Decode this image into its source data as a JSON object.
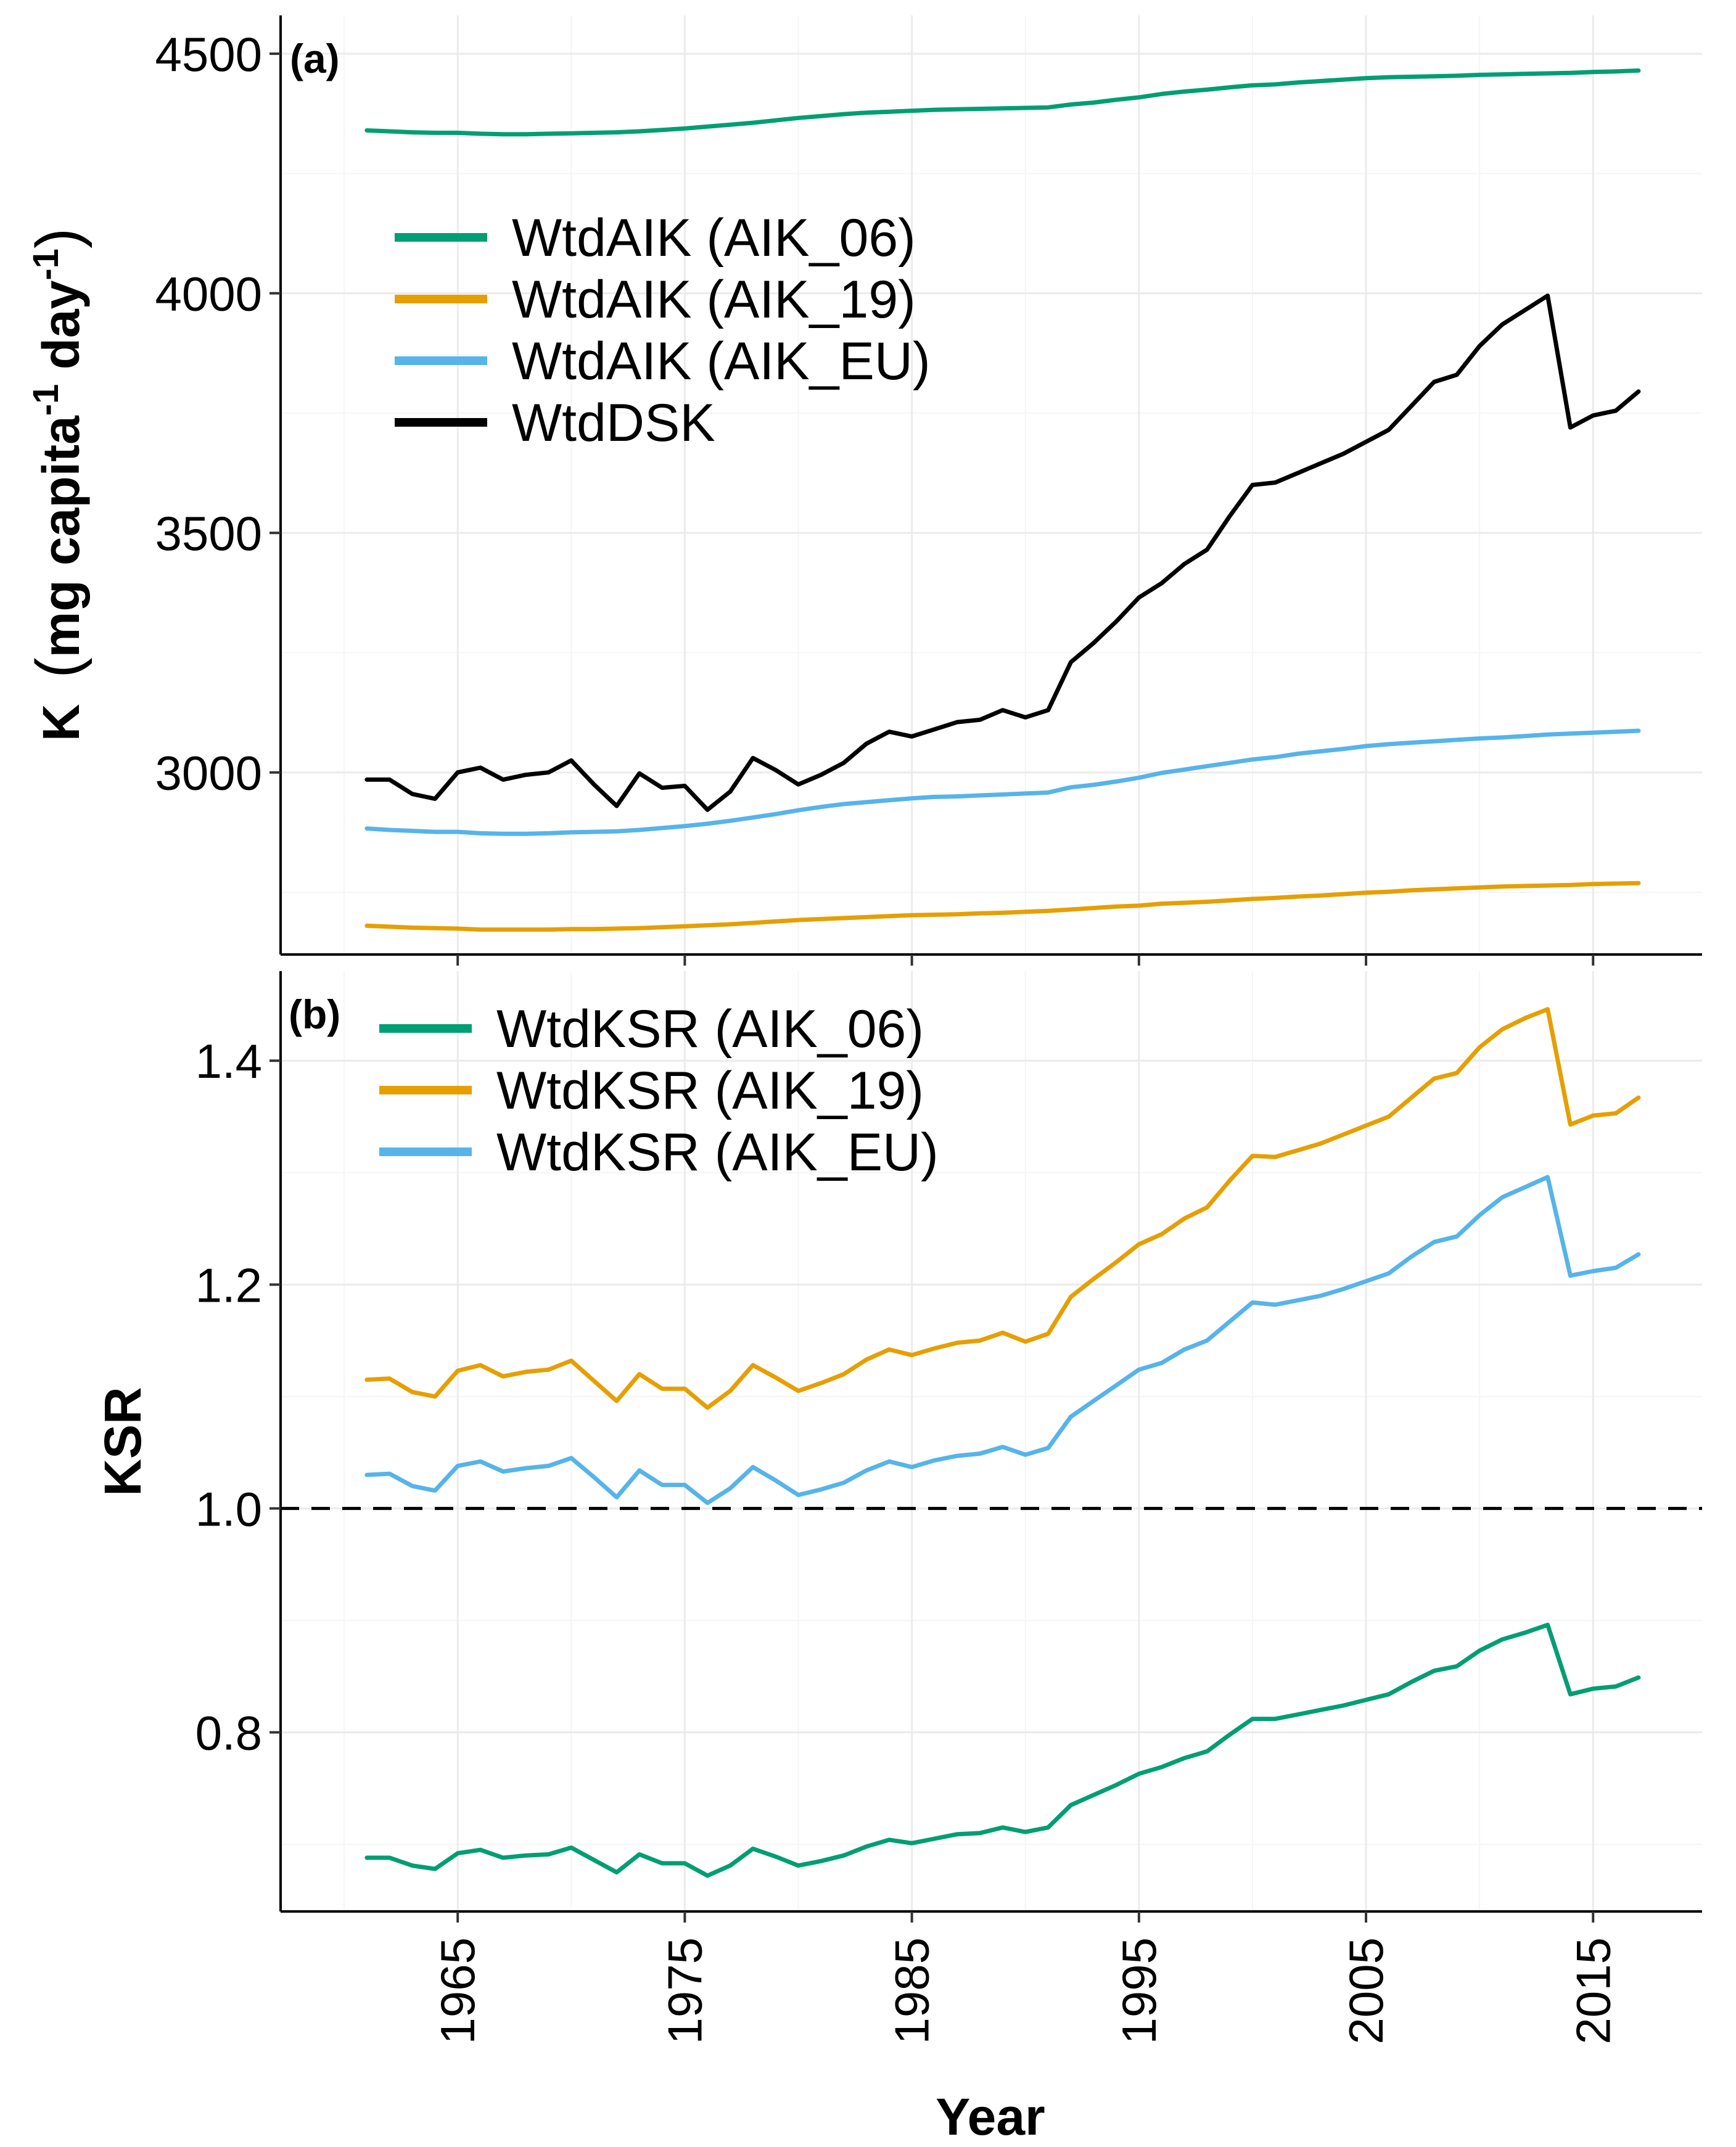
{
  "chart_data": [
    {
      "type": "line",
      "panel_tag": "(a)",
      "ylabel_parts": [
        "K",
        "mg capita",
        "-1",
        " day",
        "-1"
      ],
      "xlabel": "",
      "ylim": [
        2620,
        4580
      ],
      "y_ticks": [
        3000,
        3500,
        4000,
        4500
      ],
      "y_tick_labels": [
        "3000",
        "3500",
        "4000",
        "4500"
      ],
      "legend_position": "upper-left",
      "x": [
        1961,
        1962,
        1963,
        1964,
        1965,
        1966,
        1967,
        1968,
        1969,
        1970,
        1971,
        1972,
        1973,
        1974,
        1975,
        1976,
        1977,
        1978,
        1979,
        1980,
        1981,
        1982,
        1983,
        1984,
        1985,
        1986,
        1987,
        1988,
        1989,
        1990,
        1991,
        1992,
        1993,
        1994,
        1995,
        1996,
        1997,
        1998,
        1999,
        2000,
        2001,
        2002,
        2003,
        2004,
        2005,
        2006,
        2007,
        2008,
        2009,
        2010,
        2011,
        2012,
        2013,
        2014,
        2015,
        2016,
        2017
      ],
      "series": [
        {
          "name": "WtdAIK (AIK_06)",
          "color": "#009E73",
          "values": [
            4340,
            4338,
            4336,
            4335,
            4335,
            4333,
            4332,
            4332,
            4333,
            4334,
            4335,
            4336,
            4338,
            4341,
            4344,
            4348,
            4352,
            4356,
            4361,
            4366,
            4370,
            4374,
            4377,
            4379,
            4381,
            4383,
            4384,
            4385,
            4386,
            4387,
            4388,
            4394,
            4398,
            4404,
            4409,
            4416,
            4421,
            4425,
            4430,
            4434,
            4436,
            4440,
            4443,
            4446,
            4449,
            4451,
            4452,
            4453,
            4454,
            4456,
            4457,
            4458,
            4459,
            4460,
            4462,
            4463,
            4465
          ]
        },
        {
          "name": "WtdAIK (AIK_19)",
          "color": "#E69F00",
          "values": [
            2680,
            2678,
            2676,
            2675,
            2674,
            2672,
            2672,
            2672,
            2672,
            2673,
            2673,
            2674,
            2675,
            2677,
            2679,
            2681,
            2683,
            2686,
            2689,
            2692,
            2694,
            2696,
            2698,
            2700,
            2702,
            2703,
            2704,
            2706,
            2707,
            2709,
            2711,
            2714,
            2717,
            2720,
            2722,
            2726,
            2728,
            2730,
            2733,
            2736,
            2738,
            2741,
            2743,
            2746,
            2749,
            2751,
            2754,
            2756,
            2758,
            2760,
            2762,
            2763,
            2764,
            2765,
            2767,
            2768,
            2769
          ]
        },
        {
          "name": "WtdAIK (AIK_EU)",
          "color": "#56B4E9",
          "values": [
            2883,
            2880,
            2878,
            2876,
            2876,
            2873,
            2872,
            2872,
            2873,
            2875,
            2876,
            2877,
            2880,
            2884,
            2888,
            2893,
            2899,
            2906,
            2913,
            2921,
            2928,
            2934,
            2938,
            2942,
            2946,
            2949,
            2950,
            2952,
            2954,
            2956,
            2958,
            2969,
            2974,
            2981,
            2989,
            2999,
            3006,
            3013,
            3020,
            3027,
            3032,
            3039,
            3044,
            3049,
            3055,
            3059,
            3062,
            3065,
            3068,
            3071,
            3073,
            3076,
            3079,
            3081,
            3083,
            3085,
            3087
          ]
        },
        {
          "name": "WtdDSK",
          "color": "#000000",
          "values": [
            2985,
            2985,
            2955,
            2945,
            3000,
            3010,
            2985,
            2995,
            3000,
            3025,
            2975,
            2930,
            2998,
            2968,
            2972,
            2922,
            2960,
            3030,
            3005,
            2975,
            2995,
            3020,
            3060,
            3085,
            3075,
            3090,
            3105,
            3110,
            3130,
            3115,
            3130,
            3230,
            3270,
            3315,
            3365,
            3395,
            3435,
            3465,
            3535,
            3600,
            3605,
            3625,
            3645,
            3665,
            3690,
            3715,
            3765,
            3815,
            3830,
            3890,
            3935,
            3965,
            3995,
            3720,
            3745,
            3755,
            3795
          ]
        }
      ]
    },
    {
      "type": "line",
      "panel_tag": "(b)",
      "ylabel": "KSR",
      "xlabel": "Year",
      "ylim": [
        0.64,
        1.48
      ],
      "y_ticks": [
        0.8,
        1.0,
        1.2,
        1.4
      ],
      "y_tick_labels": [
        "0.8",
        "1.0",
        "1.2",
        "1.4"
      ],
      "x_ticks": [
        1965,
        1975,
        1985,
        1995,
        2005,
        2015
      ],
      "x_tick_labels": [
        "1965",
        "1975",
        "1985",
        "1995",
        "2005",
        "2015"
      ],
      "reference_line": {
        "y": 1.0,
        "style": "dashed"
      },
      "legend_position": "top-left",
      "x": [
        1961,
        1962,
        1963,
        1964,
        1965,
        1966,
        1967,
        1968,
        1969,
        1970,
        1971,
        1972,
        1973,
        1974,
        1975,
        1976,
        1977,
        1978,
        1979,
        1980,
        1981,
        1982,
        1983,
        1984,
        1985,
        1986,
        1987,
        1988,
        1989,
        1990,
        1991,
        1992,
        1993,
        1994,
        1995,
        1996,
        1997,
        1998,
        1999,
        2000,
        2001,
        2002,
        2003,
        2004,
        2005,
        2006,
        2007,
        2008,
        2009,
        2010,
        2011,
        2012,
        2013,
        2014,
        2015,
        2016,
        2017
      ],
      "series": [
        {
          "name": "WtdKSR (AIK_06)",
          "color": "#009E73",
          "values": [
            0.688,
            0.688,
            0.681,
            0.678,
            0.692,
            0.695,
            0.688,
            0.69,
            0.691,
            0.697,
            0.686,
            0.675,
            0.691,
            0.683,
            0.683,
            0.672,
            0.681,
            0.696,
            0.689,
            0.681,
            0.685,
            0.69,
            0.698,
            0.704,
            0.701,
            0.705,
            0.709,
            0.71,
            0.715,
            0.711,
            0.715,
            0.735,
            0.744,
            0.753,
            0.763,
            0.769,
            0.777,
            0.783,
            0.798,
            0.812,
            0.812,
            0.816,
            0.82,
            0.824,
            0.829,
            0.834,
            0.845,
            0.855,
            0.859,
            0.873,
            0.883,
            0.889,
            0.896,
            0.834,
            0.839,
            0.841,
            0.849
          ]
        },
        {
          "name": "WtdKSR (AIK_19)",
          "color": "#E69F00",
          "values": [
            1.115,
            1.116,
            1.104,
            1.1,
            1.123,
            1.128,
            1.118,
            1.122,
            1.124,
            1.132,
            1.114,
            1.096,
            1.12,
            1.107,
            1.107,
            1.09,
            1.105,
            1.128,
            1.117,
            1.105,
            1.112,
            1.12,
            1.133,
            1.142,
            1.137,
            1.143,
            1.148,
            1.15,
            1.157,
            1.149,
            1.156,
            1.189,
            1.205,
            1.22,
            1.236,
            1.245,
            1.259,
            1.269,
            1.293,
            1.315,
            1.314,
            1.32,
            1.326,
            1.334,
            1.342,
            1.35,
            1.367,
            1.384,
            1.389,
            1.412,
            1.428,
            1.438,
            1.446,
            1.343,
            1.351,
            1.353,
            1.367
          ]
        },
        {
          "name": "WtdKSR (AIK_EU)",
          "color": "#56B4E9",
          "values": [
            1.03,
            1.031,
            1.02,
            1.016,
            1.038,
            1.042,
            1.033,
            1.036,
            1.038,
            1.045,
            1.028,
            1.01,
            1.034,
            1.021,
            1.021,
            1.005,
            1.018,
            1.037,
            1.025,
            1.012,
            1.017,
            1.023,
            1.034,
            1.042,
            1.037,
            1.043,
            1.047,
            1.049,
            1.055,
            1.048,
            1.054,
            1.082,
            1.096,
            1.11,
            1.124,
            1.13,
            1.142,
            1.15,
            1.167,
            1.184,
            1.182,
            1.186,
            1.19,
            1.196,
            1.203,
            1.21,
            1.225,
            1.238,
            1.243,
            1.262,
            1.278,
            1.287,
            1.296,
            1.208,
            1.212,
            1.215,
            1.227
          ]
        }
      ]
    }
  ]
}
